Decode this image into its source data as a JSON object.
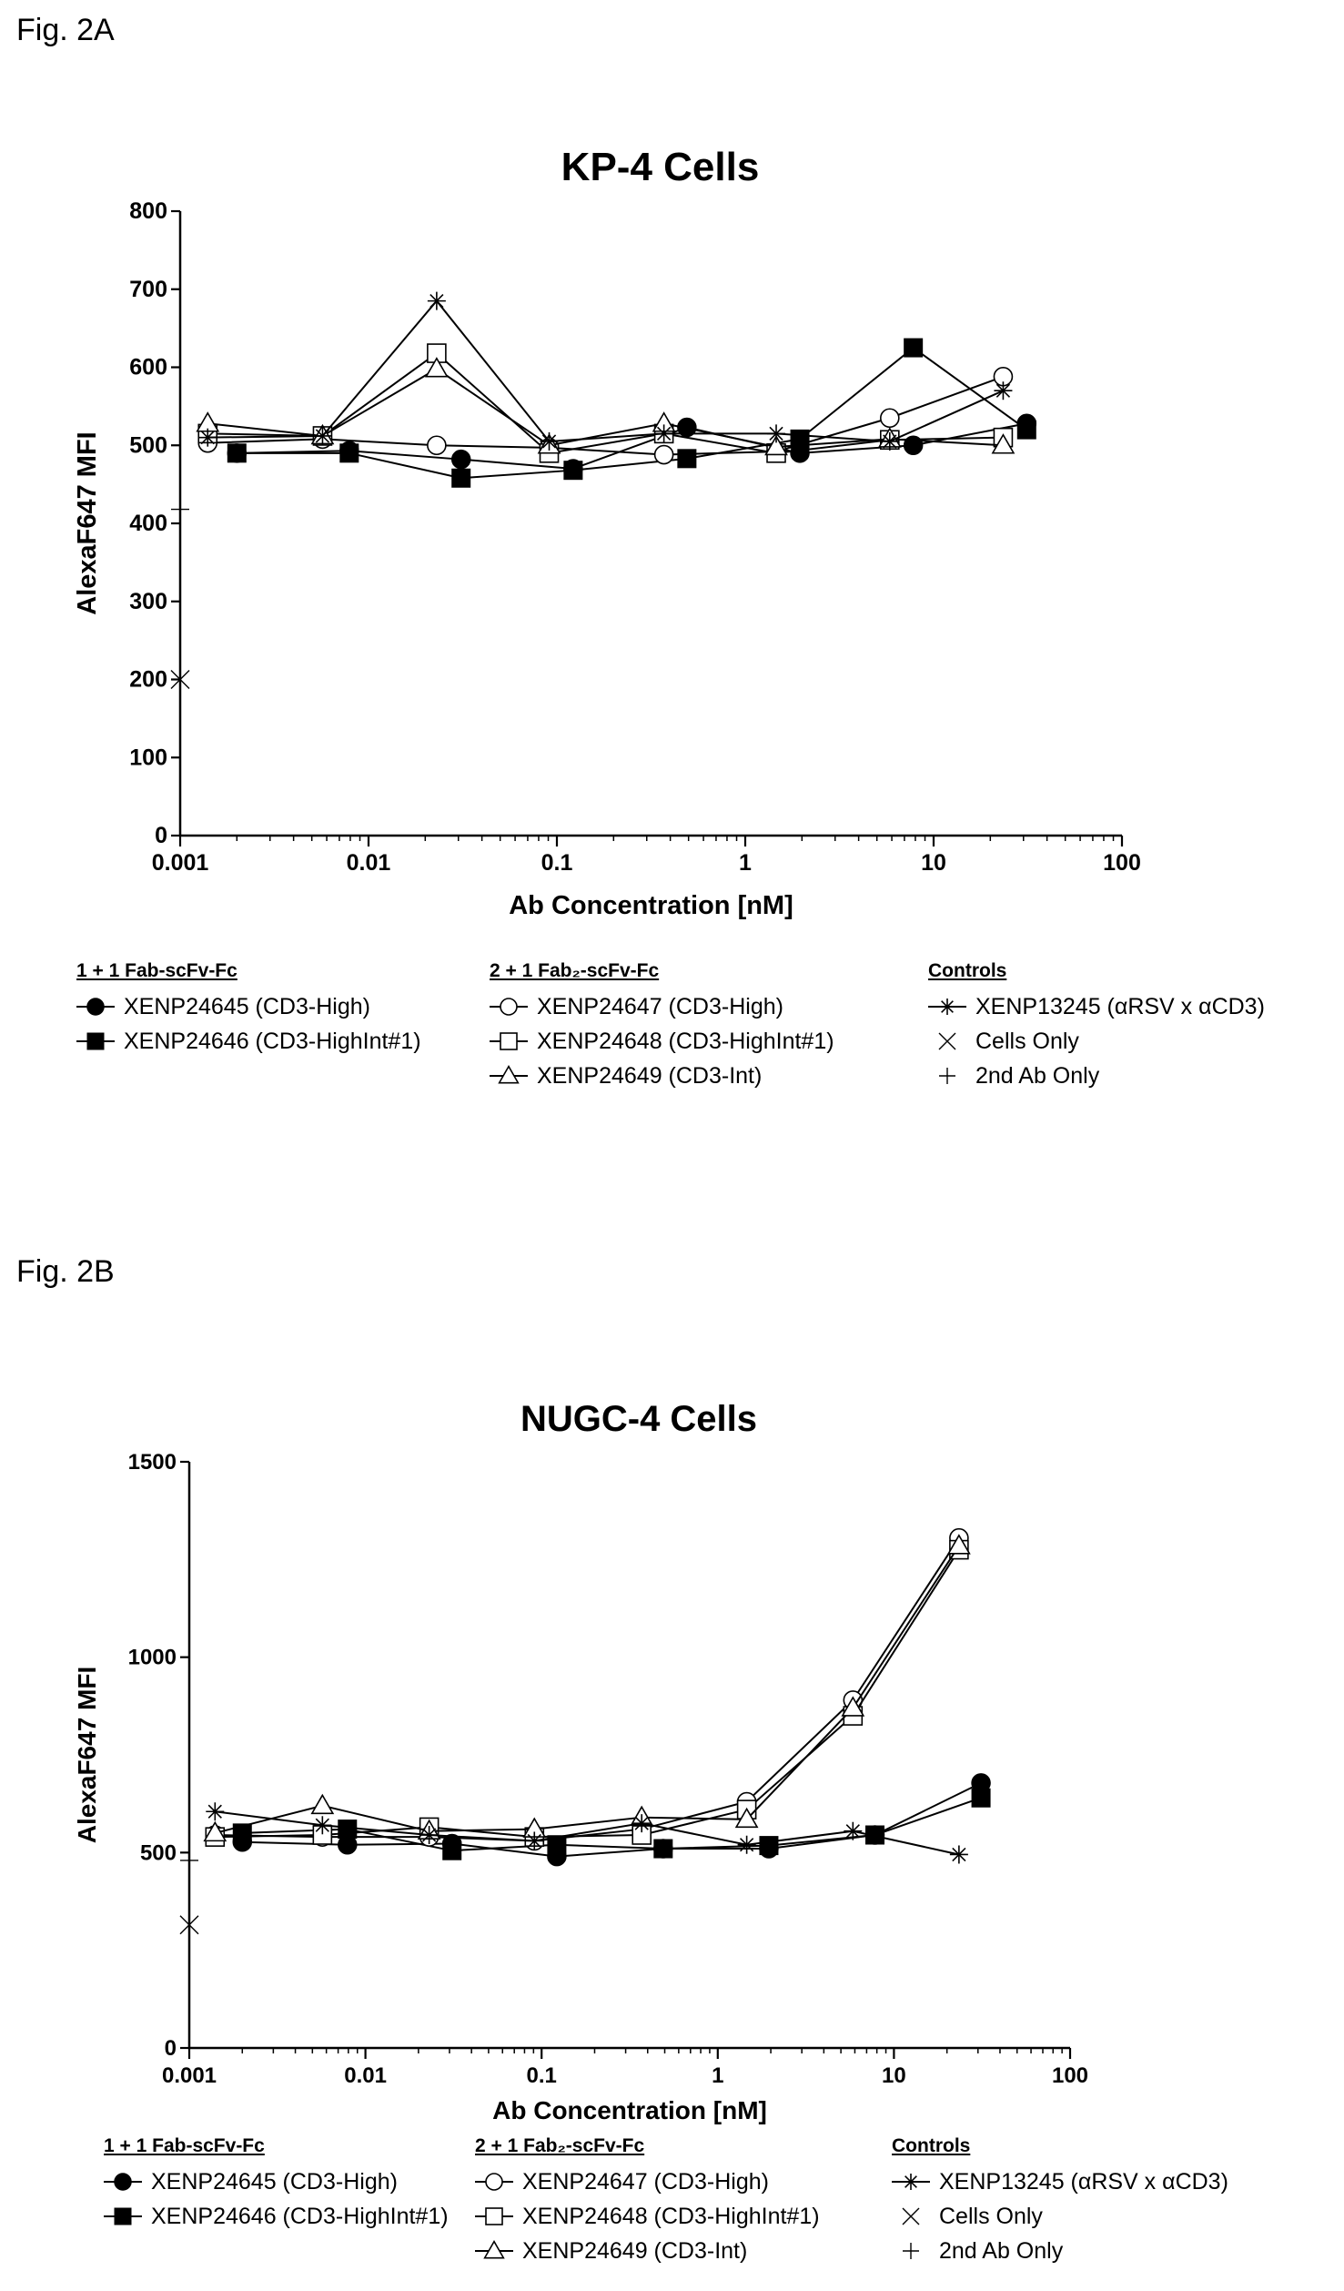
{
  "figures": [
    {
      "label": "Fig. 2A",
      "legend": [
        {
          "heading": "1 + 1 Fab-scFv-Fc",
          "entries": [
            {
              "marker": "filled-circle",
              "text": "XENP24645 (CD3-High)"
            },
            {
              "marker": "filled-square",
              "text": "XENP24646 (CD3-HighInt#1)"
            }
          ]
        },
        {
          "heading": "2 + 1 Fab₂-scFv-Fc",
          "entries": [
            {
              "marker": "open-circle",
              "text": "XENP24647 (CD3-High)"
            },
            {
              "marker": "open-square",
              "text": "XENP24648 (CD3-HighInt#1)"
            },
            {
              "marker": "open-triangle",
              "text": "XENP24649 (CD3-Int)"
            }
          ]
        },
        {
          "heading": "Controls",
          "entries": [
            {
              "marker": "asterisk",
              "text": "XENP13245 (αRSV x αCD3)"
            },
            {
              "marker": "x",
              "text": "Cells Only"
            },
            {
              "marker": "plus",
              "text": "2nd Ab Only"
            }
          ]
        }
      ]
    },
    {
      "label": "Fig. 2B",
      "legend": [
        {
          "heading": "1 + 1 Fab-scFv-Fc",
          "entries": [
            {
              "marker": "filled-circle",
              "text": "XENP24645 (CD3-High)"
            },
            {
              "marker": "filled-square",
              "text": "XENP24646 (CD3-HighInt#1)"
            }
          ]
        },
        {
          "heading": "2 + 1 Fab₂-scFv-Fc",
          "entries": [
            {
              "marker": "open-circle",
              "text": "XENP24647 (CD3-High)"
            },
            {
              "marker": "open-square",
              "text": "XENP24648 (CD3-HighInt#1)"
            },
            {
              "marker": "open-triangle",
              "text": "XENP24649 (CD3-Int)"
            }
          ]
        },
        {
          "heading": "Controls",
          "entries": [
            {
              "marker": "asterisk",
              "text": "XENP13245 (αRSV x αCD3)"
            },
            {
              "marker": "x",
              "text": "Cells Only"
            },
            {
              "marker": "plus",
              "text": "2nd Ab Only"
            }
          ]
        }
      ]
    }
  ],
  "chart_data": [
    {
      "type": "line",
      "title": "KP-4 Cells",
      "xlabel": "Ab Concentration [nM]",
      "ylabel": "AlexaF647 MFI",
      "xscale": "log",
      "xlim": [
        0.001,
        100
      ],
      "ylim": [
        0,
        800
      ],
      "xticks": [
        "0.001",
        "0.01",
        "0.1",
        "1",
        "10",
        "100"
      ],
      "yticks": [
        "0",
        "100",
        "200",
        "300",
        "400",
        "500",
        "600",
        "700",
        "800"
      ],
      "grid": false,
      "legend_position": "bottom",
      "series": [
        {
          "name": "XENP24645 (CD3-High)",
          "marker": "filled-circle",
          "x": [
            0.002,
            0.0079,
            0.031,
            0.122,
            0.49,
            1.95,
            7.8,
            31.2
          ],
          "y": [
            490,
            493,
            482,
            470,
            523,
            490,
            500,
            528
          ]
        },
        {
          "name": "XENP24646 (CD3-HighInt#1)",
          "marker": "filled-square",
          "x": [
            0.002,
            0.0079,
            0.031,
            0.122,
            0.49,
            1.95,
            7.8,
            31.2
          ],
          "y": [
            490,
            490,
            458,
            468,
            483,
            508,
            625,
            520
          ]
        },
        {
          "name": "XENP24647 (CD3-High)",
          "marker": "open-circle",
          "x": [
            0.0014,
            0.0057,
            0.023,
            0.091,
            0.37,
            1.46,
            5.85,
            23.4
          ],
          "y": [
            503,
            508,
            500,
            497,
            488,
            492,
            535,
            588
          ]
        },
        {
          "name": "XENP24648 (CD3-HighInt#1)",
          "marker": "open-square",
          "x": [
            0.0014,
            0.0057,
            0.023,
            0.091,
            0.37,
            1.46,
            5.85,
            23.4
          ],
          "y": [
            515,
            512,
            618,
            490,
            515,
            490,
            507,
            510
          ]
        },
        {
          "name": "XENP24649 (CD3-Int)",
          "marker": "open-triangle",
          "x": [
            0.0014,
            0.0057,
            0.023,
            0.091,
            0.37,
            1.46,
            5.85,
            23.4
          ],
          "y": [
            528,
            512,
            598,
            500,
            528,
            498,
            508,
            500
          ]
        },
        {
          "name": "XENP13245 (αRSV x αCD3)",
          "marker": "asterisk",
          "x": [
            0.0014,
            0.0057,
            0.023,
            0.091,
            0.37,
            1.46,
            5.85,
            23.4
          ],
          "y": [
            510,
            512,
            685,
            505,
            515,
            515,
            505,
            570
          ]
        },
        {
          "name": "Cells Only",
          "marker": "x",
          "x": [
            0.001
          ],
          "y": [
            200
          ]
        },
        {
          "name": "2nd Ab Only",
          "marker": "plus",
          "x": [
            0.001
          ],
          "y": [
            418
          ]
        }
      ]
    },
    {
      "type": "line",
      "title": "NUGC-4 Cells",
      "xlabel": "Ab Concentration [nM]",
      "ylabel": "AlexaF647 MFI",
      "xscale": "log",
      "xlim": [
        0.001,
        100
      ],
      "ylim": [
        0,
        1500
      ],
      "xticks": [
        "0.001",
        "0.01",
        "0.1",
        "1",
        "10",
        "100"
      ],
      "yticks": [
        "0",
        "500",
        "1000",
        "1500"
      ],
      "grid": false,
      "legend_position": "bottom",
      "series": [
        {
          "name": "XENP24645 (CD3-High)",
          "marker": "filled-circle",
          "x": [
            0.002,
            0.0079,
            0.031,
            0.122,
            0.49,
            1.95,
            7.8,
            31.2
          ],
          "y": [
            527,
            520,
            523,
            490,
            510,
            510,
            545,
            678
          ]
        },
        {
          "name": "XENP24646 (CD3-HighInt#1)",
          "marker": "filled-square",
          "x": [
            0.002,
            0.0079,
            0.031,
            0.122,
            0.49,
            1.95,
            7.8,
            31.2
          ],
          "y": [
            550,
            560,
            505,
            520,
            510,
            518,
            545,
            640
          ]
        },
        {
          "name": "XENP24647 (CD3-High)",
          "marker": "open-circle",
          "x": [
            0.0014,
            0.0057,
            0.023,
            0.091,
            0.37,
            1.46,
            5.85,
            23.4
          ],
          "y": [
            545,
            540,
            540,
            530,
            560,
            630,
            890,
            1305
          ]
        },
        {
          "name": "XENP24648 (CD3-HighInt#1)",
          "marker": "open-square",
          "x": [
            0.0014,
            0.0057,
            0.023,
            0.091,
            0.37,
            1.46,
            5.85,
            23.4
          ],
          "y": [
            540,
            545,
            565,
            540,
            545,
            610,
            850,
            1275
          ]
        },
        {
          "name": "XENP24649 (CD3-Int)",
          "marker": "open-triangle",
          "x": [
            0.0014,
            0.0057,
            0.023,
            0.091,
            0.37,
            1.46,
            5.85,
            23.4
          ],
          "y": [
            550,
            620,
            555,
            560,
            590,
            585,
            870,
            1285
          ]
        },
        {
          "name": "XENP13245 (αRSV x αCD3)",
          "marker": "asterisk",
          "x": [
            0.0014,
            0.0057,
            0.023,
            0.091,
            0.37,
            1.46,
            5.85,
            23.4
          ],
          "y": [
            605,
            570,
            545,
            530,
            575,
            520,
            555,
            495
          ]
        },
        {
          "name": "Cells Only",
          "marker": "x",
          "x": [
            0.001
          ],
          "y": [
            315
          ]
        },
        {
          "name": "2nd Ab Only",
          "marker": "plus",
          "x": [
            0.001
          ],
          "y": [
            480
          ]
        }
      ]
    }
  ]
}
